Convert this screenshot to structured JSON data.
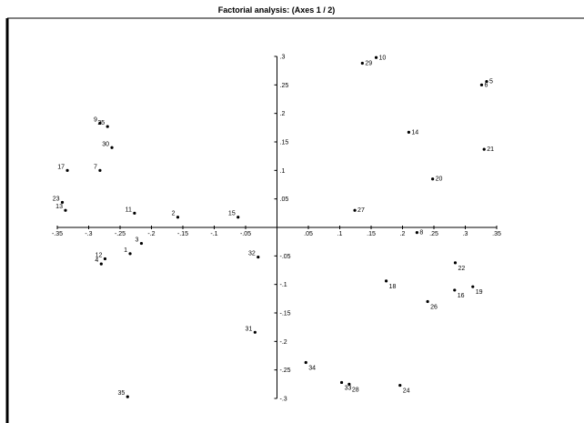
{
  "chart_data": {
    "type": "scatter",
    "title": "Factorial analysis: (Axes 1 / 2)",
    "xlim": [
      -0.35,
      0.35
    ],
    "ylim": [
      -0.3,
      0.3
    ],
    "x_ticks": [
      {
        "v": -0.35,
        "label": "-.35"
      },
      {
        "v": -0.3,
        "label": "-.3"
      },
      {
        "v": -0.25,
        "label": "-.25"
      },
      {
        "v": -0.2,
        "label": "-.2"
      },
      {
        "v": -0.15,
        "label": "-.15"
      },
      {
        "v": -0.1,
        "label": "-.1"
      },
      {
        "v": -0.05,
        "label": "-.05"
      },
      {
        "v": 0.05,
        "label": ".05"
      },
      {
        "v": 0.1,
        "label": ".1"
      },
      {
        "v": 0.15,
        "label": ".15"
      },
      {
        "v": 0.2,
        "label": ".2"
      },
      {
        "v": 0.25,
        "label": ".25"
      },
      {
        "v": 0.3,
        "label": ".3"
      },
      {
        "v": 0.35,
        "label": ".35"
      }
    ],
    "y_ticks": [
      {
        "v": 0.3,
        "label": ".3"
      },
      {
        "v": 0.25,
        "label": ".25"
      },
      {
        "v": 0.2,
        "label": ".2"
      },
      {
        "v": 0.15,
        "label": ".15"
      },
      {
        "v": 0.1,
        "label": ".1"
      },
      {
        "v": 0.05,
        "label": ".05"
      },
      {
        "v": -0.05,
        "label": "-.05"
      },
      {
        "v": -0.1,
        "label": "-.1"
      },
      {
        "v": -0.15,
        "label": "-.15"
      },
      {
        "v": -0.2,
        "label": "-.2"
      },
      {
        "v": -0.25,
        "label": "-.25"
      },
      {
        "v": -0.3,
        "label": "-.3"
      }
    ],
    "points": [
      {
        "label": "1",
        "x": -0.234,
        "y": -0.046,
        "pos": "left"
      },
      {
        "label": "2",
        "x": -0.158,
        "y": 0.018,
        "pos": "left"
      },
      {
        "label": "3",
        "x": -0.216,
        "y": -0.028,
        "pos": "left"
      },
      {
        "label": "4",
        "x": -0.28,
        "y": -0.064,
        "pos": "left"
      },
      {
        "label": "5",
        "x": 0.334,
        "y": 0.256,
        "pos": "right"
      },
      {
        "label": "6",
        "x": 0.326,
        "y": 0.25,
        "pos": "right"
      },
      {
        "label": "7",
        "x": -0.282,
        "y": 0.1,
        "pos": "left"
      },
      {
        "label": "8",
        "x": 0.223,
        "y": -0.009,
        "pos": "right"
      },
      {
        "label": "9",
        "x": -0.282,
        "y": 0.183,
        "pos": "left"
      },
      {
        "label": "10",
        "x": 0.158,
        "y": 0.298,
        "pos": "right"
      },
      {
        "label": "11",
        "x": -0.227,
        "y": 0.025,
        "pos": "left"
      },
      {
        "label": "12",
        "x": -0.274,
        "y": -0.055,
        "pos": "left"
      },
      {
        "label": "13",
        "x": -0.337,
        "y": 0.03,
        "pos": "left"
      },
      {
        "label": "14",
        "x": 0.21,
        "y": 0.167,
        "pos": "right"
      },
      {
        "label": "15",
        "x": -0.062,
        "y": 0.018,
        "pos": "left"
      },
      {
        "label": "16",
        "x": 0.283,
        "y": -0.11,
        "pos": "belowright"
      },
      {
        "label": "17",
        "x": -0.334,
        "y": 0.1,
        "pos": "left"
      },
      {
        "label": "18",
        "x": 0.174,
        "y": -0.094,
        "pos": "belowright"
      },
      {
        "label": "19",
        "x": 0.312,
        "y": -0.104,
        "pos": "belowright"
      },
      {
        "label": "20",
        "x": 0.248,
        "y": 0.085,
        "pos": "right"
      },
      {
        "label": "21",
        "x": 0.33,
        "y": 0.137,
        "pos": "right"
      },
      {
        "label": "22",
        "x": 0.284,
        "y": -0.062,
        "pos": "belowright"
      },
      {
        "label": "23",
        "x": -0.342,
        "y": 0.044,
        "pos": "left"
      },
      {
        "label": "24",
        "x": 0.196,
        "y": -0.277,
        "pos": "belowright"
      },
      {
        "label": "25",
        "x": -0.27,
        "y": 0.177,
        "pos": "left"
      },
      {
        "label": "26",
        "x": 0.24,
        "y": -0.13,
        "pos": "belowright"
      },
      {
        "label": "27",
        "x": 0.124,
        "y": 0.03,
        "pos": "right"
      },
      {
        "label": "28",
        "x": 0.115,
        "y": -0.275,
        "pos": "belowright"
      },
      {
        "label": "29",
        "x": 0.136,
        "y": 0.288,
        "pos": "right"
      },
      {
        "label": "30",
        "x": -0.263,
        "y": 0.14,
        "pos": "left"
      },
      {
        "label": "31",
        "x": -0.035,
        "y": -0.184,
        "pos": "left"
      },
      {
        "label": "32",
        "x": -0.03,
        "y": -0.052,
        "pos": "left"
      },
      {
        "label": "33",
        "x": 0.103,
        "y": -0.272,
        "pos": "belowright"
      },
      {
        "label": "34",
        "x": 0.046,
        "y": -0.237,
        "pos": "belowright"
      },
      {
        "label": "35",
        "x": -0.238,
        "y": -0.297,
        "pos": "left"
      }
    ]
  }
}
